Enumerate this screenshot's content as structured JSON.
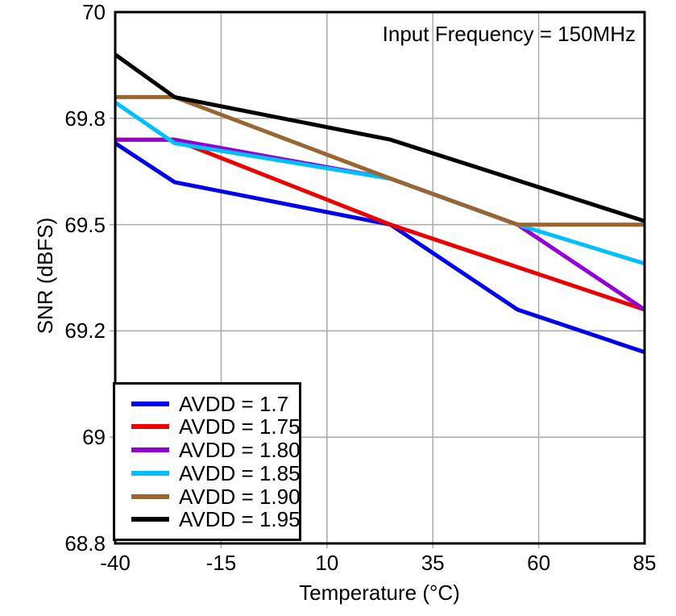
{
  "annotation": "Input Frequency = 150MHz",
  "chart_data": {
    "type": "line",
    "title": "",
    "annotation": "Input Frequency = 150MHz",
    "xlabel": "Temperature (°C)",
    "ylabel": "SNR (dBFS)",
    "x_ticks": [
      -40,
      -15,
      10,
      35,
      60,
      85
    ],
    "x_range": [
      -40,
      85
    ],
    "y_ticks_top_to_bottom": [
      70,
      69.8,
      69.5,
      69.2,
      69,
      68.8
    ],
    "y_axis_note": "tick labels are evenly spaced on screen (non-uniform value steps of 0.2/0.3)",
    "grid": true,
    "legend_position": "lower-left",
    "colors": {
      "grid": "#A9A9A9",
      "axis": "#000000",
      "background": "#FFFFFF"
    },
    "series": [
      {
        "name": "AVDD = 1.7",
        "color": "#0000EE",
        "points": [
          [
            -40,
            69.73
          ],
          [
            -26,
            69.62
          ],
          [
            25,
            69.5
          ],
          [
            55,
            69.26
          ],
          [
            85,
            69.16
          ]
        ]
      },
      {
        "name": "AVDD = 1.75",
        "color": "#EE0000",
        "points": [
          [
            -40,
            69.74
          ],
          [
            -26,
            69.74
          ],
          [
            25,
            69.5
          ],
          [
            85,
            69.26
          ]
        ]
      },
      {
        "name": "AVDD = 1.80",
        "color": "#9400D3",
        "points": [
          [
            -40,
            69.74
          ],
          [
            -26,
            69.74
          ],
          [
            25,
            69.63
          ],
          [
            55,
            69.5
          ],
          [
            85,
            69.26
          ]
        ]
      },
      {
        "name": "AVDD = 1.85",
        "color": "#00BFFF",
        "points": [
          [
            -40,
            69.83
          ],
          [
            -26,
            69.73
          ],
          [
            25,
            69.63
          ],
          [
            55,
            69.5
          ],
          [
            85,
            69.39
          ]
        ]
      },
      {
        "name": "AVDD = 1.90",
        "color": "#996633",
        "points": [
          [
            -40,
            69.84
          ],
          [
            -26,
            69.84
          ],
          [
            25,
            69.63
          ],
          [
            55,
            69.5
          ],
          [
            85,
            69.5
          ]
        ]
      },
      {
        "name": "AVDD = 1.95",
        "color": "#000000",
        "points": [
          [
            -40,
            69.92
          ],
          [
            -26,
            69.84
          ],
          [
            25,
            69.74
          ],
          [
            85,
            69.51
          ]
        ]
      }
    ]
  }
}
